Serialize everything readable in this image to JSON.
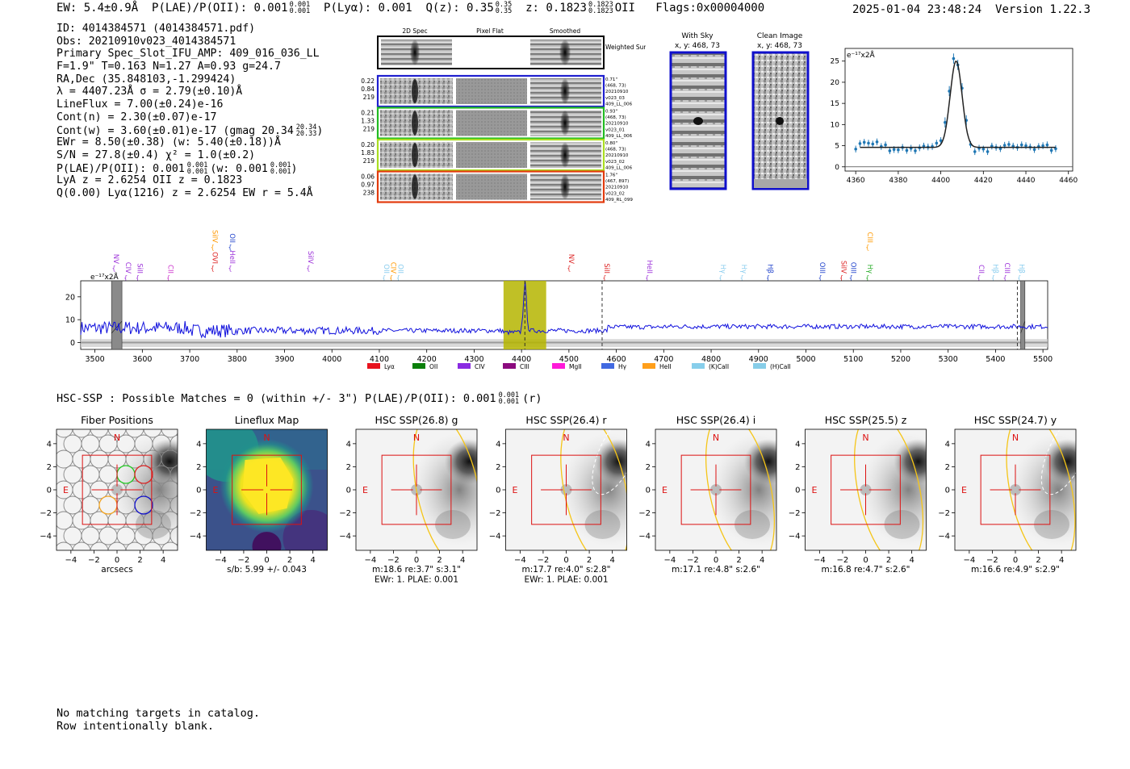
{
  "header": {
    "ew": "EW: 5.4±0.9Å",
    "plae_label": "P(LAE)/P(OII): 0.001",
    "plae_sup": "0.001",
    "plae_sub": "0.001",
    "plya": "P(Lyα): 0.001",
    "q_label": "Q(z): 0.35",
    "q_sup": "0.35",
    "q_sub": "0.35",
    "z_label": "z: 0.1823",
    "z_sup": "0.1823",
    "z_sub": "0.1823",
    "z_line": "OII",
    "flags": "Flags:0x00004000",
    "datetime": "2025-01-04 23:48:24",
    "version": "Version 1.22.3"
  },
  "info": {
    "id": "ID: 4014384571 (4014384571.pdf)",
    "obs": "Obs: 20210910v023_4014384571",
    "slot": "Primary Spec_Slot_IFU_AMP: 409_016_036_LL",
    "fit": "F=1.9\"  T=0.163  N=1.27  A=0.93  g=24.7",
    "radec": "RA,Dec (35.848103,-1.299424)",
    "lambda": "λ = 4407.23Å  σ = 2.79(±0.10)Å",
    "lineflux": "LineFlux = 7.00(±0.24)e-16",
    "contn": "Cont(n) = 2.30(±0.07)e-17",
    "contw": "Cont(w) = 3.60(±0.01)e-17 (gmag 20.34",
    "gmag_sup": "20.34",
    "gmag_sub": "20.33",
    "ewr": "EWr = 8.50(±0.38) (w: 5.40(±0.18))Å",
    "sn": "S/N = 27.8(±0.4)  χ² = 1.0(±0.2)",
    "plae": "P(LAE)/P(OII): 0.001",
    "plae_sup": "0.001",
    "plae_sub": "0.001",
    "plae_w": "(w: 0.001",
    "plae_w_sup": "0.001",
    "plae_w_sub": "0.001",
    "lya_z": "LyA z = 2.6254  OII z = 0.1823",
    "q_line": "Q(0.00) Lyα(1216) z = 2.6254  EW r = 5.4Å"
  },
  "cutouts": {
    "col_headers": [
      "2D Spec",
      "Pixel Flat",
      "Smoothed"
    ],
    "weighted_label": "Weighted Sum",
    "rows": [
      {
        "vals": [
          "0.22",
          "0.84",
          "219"
        ],
        "meta": [
          "0.71\"",
          "(468, 73)",
          "20210910",
          "v023_03",
          "409_LL_006"
        ],
        "color": "#1f1fcf"
      },
      {
        "vals": [
          "0.21",
          "1.33",
          "219"
        ],
        "meta": [
          "0.93\"",
          "(468, 73)",
          "20210910",
          "v023_01",
          "409_LL_006"
        ],
        "color": "#22bb22"
      },
      {
        "vals": [
          "0.20",
          "1.83",
          "219"
        ],
        "meta": [
          "0.80\"",
          "(468, 73)",
          "20210910",
          "v023_02",
          "409_LL_006"
        ],
        "color": "#aadd22"
      },
      {
        "vals": [
          "0.06",
          "0.97",
          "238"
        ],
        "meta": [
          "1.76\"",
          "(467, 897)",
          "20210910",
          "v023_02",
          "409_RL_099"
        ],
        "color": "#e23b0e"
      }
    ]
  },
  "sky": {
    "with_sky_title": "With Sky",
    "with_sky_xy": "x, y: 468, 73",
    "clean_title": "Clean Image",
    "clean_xy": "x, y: 468, 73"
  },
  "zoom_chart": {
    "type": "scatter",
    "units_label": "e⁻¹⁷x2Å",
    "x": [
      4360,
      4362,
      4364,
      4366,
      4368,
      4370,
      4372,
      4374,
      4376,
      4378,
      4380,
      4382,
      4384,
      4386,
      4388,
      4390,
      4392,
      4394,
      4396,
      4398,
      4400,
      4402,
      4404,
      4406,
      4408,
      4410,
      4412,
      4414,
      4416,
      4418,
      4420,
      4422,
      4424,
      4426,
      4428,
      4430,
      4432,
      4434,
      4436,
      4438,
      4440,
      4442,
      4444,
      4446,
      4448,
      4450,
      4452,
      4454
    ],
    "y": [
      4.2,
      5.5,
      5.8,
      5.6,
      5.4,
      5.9,
      4.8,
      5.2,
      3.8,
      4.1,
      4.0,
      4.6,
      3.9,
      4.4,
      3.8,
      4.5,
      4.9,
      4.7,
      4.8,
      5.6,
      6.2,
      10.5,
      17.9,
      25.6,
      24.1,
      18.6,
      11.0,
      5.3,
      3.6,
      4.4,
      4.2,
      3.6,
      4.9,
      4.6,
      4.3,
      5.1,
      5.3,
      4.9,
      4.6,
      5.2,
      5.0,
      4.7,
      4.1,
      4.8,
      5.0,
      5.2,
      3.9,
      4.3
    ],
    "fit_continuum": 4.6,
    "fit_peak_x": 4407.2,
    "fit_peak_y": 25.0,
    "fit_sigma": 2.79,
    "xticks": [
      4360,
      4380,
      4400,
      4420,
      4440,
      4460
    ],
    "yticks": [
      0,
      5,
      10,
      15,
      20,
      25
    ],
    "xlim": [
      4355,
      4462
    ],
    "ylim": [
      -1,
      28
    ]
  },
  "chart_data": {
    "type": "line",
    "title": "",
    "ylabel": "e⁻¹⁷x2Å",
    "xlim": [
      3470,
      5510
    ],
    "ylim": [
      -3,
      27
    ],
    "xticks": [
      3500,
      3600,
      3700,
      3800,
      3900,
      4000,
      4100,
      4200,
      4300,
      4400,
      4500,
      4600,
      4700,
      4800,
      4900,
      5000,
      5100,
      5200,
      5300,
      5400,
      5500
    ],
    "yticks": [
      0,
      10,
      20
    ],
    "highlight_range": [
      4362,
      4452
    ],
    "emission_peak": {
      "x": 4407.2,
      "y": 25.6
    },
    "dashed_lines": [
      4407,
      4570,
      5446
    ],
    "masked_ranges": [
      [
        3535,
        3557
      ],
      [
        5453,
        5462
      ]
    ],
    "line_markers": [
      {
        "name": "NV",
        "x": 3540,
        "color": "#9b30d9",
        "row": 1
      },
      {
        "name": "CIV",
        "x": 3565,
        "color": "#9b30d9",
        "row": 2
      },
      {
        "name": "SiII",
        "x": 3590,
        "color": "#9b30d9",
        "row": 2
      },
      {
        "name": "CII",
        "x": 3655,
        "color": "#cc33cc",
        "row": 2
      },
      {
        "name": "SiIV",
        "x": 3748,
        "color": "#ff9900",
        "row": 0
      },
      {
        "name": "OVI",
        "x": 3748,
        "color": "#dd2222",
        "row": 1
      },
      {
        "name": "OII",
        "x": 3785,
        "color": "#2244cc",
        "row": 0
      },
      {
        "name": "HeII",
        "x": 3785,
        "color": "#9b30d9",
        "row": 1
      },
      {
        "name": "SiIV",
        "x": 3950,
        "color": "#9b30d9",
        "row": 1
      },
      {
        "name": "OII",
        "x": 4110,
        "color": "#88ccee",
        "row": 2
      },
      {
        "name": "CIV",
        "x": 4125,
        "color": "#ff9900",
        "row": 2
      },
      {
        "name": "OII",
        "x": 4140,
        "color": "#88ccee",
        "row": 2
      },
      {
        "name": "NV",
        "x": 4500,
        "color": "#dd2222",
        "row": 1
      },
      {
        "name": "SiII",
        "x": 4575,
        "color": "#dd2222",
        "row": 2
      },
      {
        "name": "HeII",
        "x": 4665,
        "color": "#9b30d9",
        "row": 2
      },
      {
        "name": "Hγ",
        "x": 4820,
        "color": "#88ccee",
        "row": 2
      },
      {
        "name": "Hγ",
        "x": 4865,
        "color": "#88ccee",
        "row": 2
      },
      {
        "name": "Hβ",
        "x": 4920,
        "color": "#2244cc",
        "row": 2
      },
      {
        "name": "OIII",
        "x": 5030,
        "color": "#2244cc",
        "row": 2
      },
      {
        "name": "SiIV",
        "x": 5075,
        "color": "#dd2222",
        "row": 2
      },
      {
        "name": "OIII",
        "x": 5095,
        "color": "#2244cc",
        "row": 2
      },
      {
        "name": "CIII",
        "x": 5130,
        "color": "#ff9900",
        "row": 0
      },
      {
        "name": "Hγ",
        "x": 5130,
        "color": "#22aa22",
        "row": 2
      },
      {
        "name": "CII",
        "x": 5365,
        "color": "#9b30d9",
        "row": 2
      },
      {
        "name": "Hβ",
        "x": 5395,
        "color": "#88ccee",
        "row": 2
      },
      {
        "name": "CIII",
        "x": 5420,
        "color": "#9b30d9",
        "row": 2
      },
      {
        "name": "Hβ",
        "x": 5450,
        "color": "#88ccee",
        "row": 2
      }
    ],
    "legend": [
      {
        "label": "Lyα",
        "color": "#e8131e"
      },
      {
        "label": "OII",
        "color": "#0a7f0a"
      },
      {
        "label": "CIV",
        "color": "#8a2be2"
      },
      {
        "label": "CIII",
        "color": "#8b0a7e"
      },
      {
        "label": "MgII",
        "color": "#ff1ad9"
      },
      {
        "label": "Hγ",
        "color": "#4169e1"
      },
      {
        "label": "HeII",
        "color": "#ff9f1a"
      },
      {
        "label": "(K)CaII",
        "color": "#87ceeb"
      },
      {
        "label": "(H)CaII",
        "color": "#87cde8"
      }
    ],
    "series_color": "#1010dd"
  },
  "hsc": {
    "title": "HSC-SSP : Possible Matches = 0 (within +/- 3\")  P(LAE)/P(OII): 0.001",
    "sup": "0.001",
    "sub": "0.001",
    "band": "(r)",
    "panels": [
      {
        "title": "Fiber Positions",
        "caption": [
          "arcsecs"
        ],
        "kind": "fibers"
      },
      {
        "title": "Lineflux Map",
        "caption": [
          "s/b: 5.99 +/- 0.043"
        ],
        "kind": "flux"
      },
      {
        "title": "HSC SSP(26.8) g",
        "caption": [
          "m:18.6  re:3.7\"  s:3.1\"",
          "EWr: 1. PLAE: 0.001"
        ],
        "kind": "hsc",
        "ellipse_x": 2.0
      },
      {
        "title": "HSC SSP(26.4) r",
        "caption": [
          "m:17.7  re:4.0\"  s:2.8\"",
          "EWr: 1. PLAE: 0.001"
        ],
        "kind": "hsc",
        "ellipse_x": 1.8
      },
      {
        "title": "HSC SSP(26.4) i",
        "caption": [
          "m:17.1  re:4.8\"  s:2.6\""
        ],
        "kind": "hsc",
        "ellipse_x": 1.4
      },
      {
        "title": "HSC SSP(25.5) z",
        "caption": [
          "m:16.8  re:4.7\"  s:2.6\""
        ],
        "kind": "hsc",
        "ellipse_x": 1.3
      },
      {
        "title": "HSC SSP(24.7) y",
        "caption": [
          "m:16.6  re:4.9\"  s:2.9\""
        ],
        "kind": "hsc",
        "ellipse_x": 1.5
      }
    ],
    "north": "N",
    "east": "E",
    "ticks": [
      "−4",
      "−2",
      "0",
      "2",
      "4"
    ]
  },
  "footer": {
    "line1": "No matching targets in catalog.",
    "line2": "Row intentionally blank."
  }
}
